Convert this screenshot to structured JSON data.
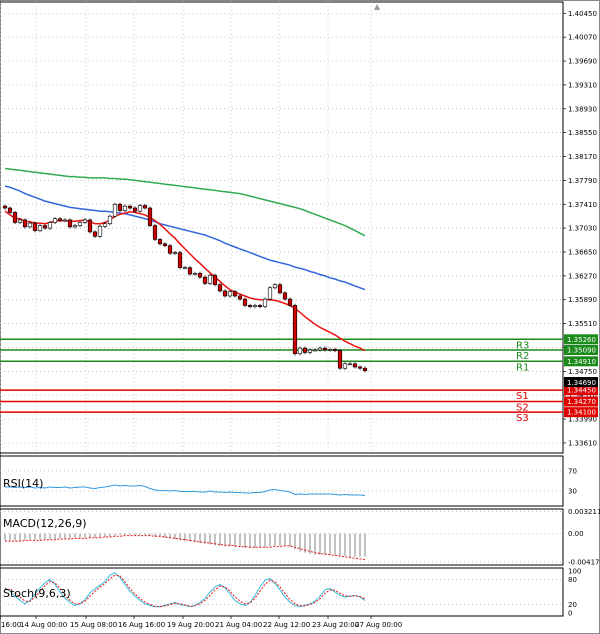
{
  "chart_data": [
    {
      "type": "candlestick",
      "panel": "price",
      "y_ticks": [
        "1.40450",
        "1.40070",
        "1.39690",
        "1.39310",
        "1.38930",
        "1.38550",
        "1.38170",
        "1.37790",
        "1.37410",
        "1.37030",
        "1.36650",
        "1.36270",
        "1.35890",
        "1.35510",
        "1.35130",
        "1.34750",
        "1.34370",
        "1.33990",
        "1.33610"
      ],
      "ylim": [
        1.3345,
        1.4063
      ],
      "current_price": "1.34690",
      "levels": [
        {
          "name": "R3",
          "value": 1.3526,
          "label": "1.35260",
          "color": "#1a8a1a"
        },
        {
          "name": "R2",
          "value": 1.3509,
          "label": "1.35090",
          "color": "#1a8a1a"
        },
        {
          "name": "R1",
          "value": 1.3491,
          "label": "1.34910",
          "color": "#1a8a1a"
        },
        {
          "name": "S1",
          "value": 1.3445,
          "label": "1.34450",
          "color": "#e00000"
        },
        {
          "name": "S2",
          "value": 1.3427,
          "label": "1.34270",
          "color": "#e00000"
        },
        {
          "name": "S3",
          "value": 1.341,
          "label": "1.34100",
          "color": "#e00000"
        }
      ],
      "close": [
        1.3735,
        1.3728,
        1.3712,
        1.3716,
        1.3705,
        1.3711,
        1.3699,
        1.3707,
        1.3703,
        1.3712,
        1.3718,
        1.3715,
        1.3716,
        1.3705,
        1.3707,
        1.3712,
        1.3716,
        1.3697,
        1.369,
        1.3706,
        1.371,
        1.3722,
        1.3741,
        1.3731,
        1.3738,
        1.3735,
        1.373,
        1.3739,
        1.3735,
        1.3707,
        1.3685,
        1.3678,
        1.3675,
        1.3663,
        1.3664,
        1.364,
        1.364,
        1.363,
        1.3631,
        1.3625,
        1.3615,
        1.3628,
        1.3613,
        1.3603,
        1.3595,
        1.3602,
        1.3595,
        1.359,
        1.358,
        1.3578,
        1.358,
        1.3578,
        1.359,
        1.3608,
        1.3613,
        1.36,
        1.359,
        1.358,
        1.3503,
        1.3512,
        1.3505,
        1.3509,
        1.3509,
        1.3512,
        1.3509,
        1.351,
        1.3508,
        1.348,
        1.3487,
        1.3487,
        1.3482,
        1.348,
        1.3476
      ],
      "ma_fast": [
        1.373,
        1.3724,
        1.3719,
        1.3718,
        1.3714,
        1.3713,
        1.3711,
        1.3711,
        1.371,
        1.3712,
        1.3714,
        1.3715,
        1.3715,
        1.3714,
        1.3714,
        1.3715,
        1.3716,
        1.3713,
        1.371,
        1.371,
        1.3712,
        1.3716,
        1.3722,
        1.3725,
        1.3727,
        1.3729,
        1.3728,
        1.3726,
        1.3724,
        1.372,
        1.3715,
        1.3709,
        1.3702,
        1.3694,
        1.3687,
        1.3678,
        1.367,
        1.3662,
        1.3654,
        1.3647,
        1.3639,
        1.3632,
        1.3625,
        1.3618,
        1.3611,
        1.3605,
        1.3601,
        1.3598,
        1.3595,
        1.3592,
        1.359,
        1.3589,
        1.3589,
        1.3589,
        1.3588,
        1.3586,
        1.3583,
        1.358,
        1.3575,
        1.3569,
        1.3562,
        1.3556,
        1.355,
        1.3545,
        1.3541,
        1.3537,
        1.3533,
        1.3528,
        1.3523,
        1.3519,
        1.3515,
        1.3512,
        1.3508
      ],
      "ma_mid": [
        1.377,
        1.3768,
        1.3765,
        1.3762,
        1.3758,
        1.3755,
        1.3752,
        1.3749,
        1.3746,
        1.3744,
        1.3742,
        1.374,
        1.3738,
        1.3736,
        1.3735,
        1.3734,
        1.3733,
        1.3732,
        1.3731,
        1.373,
        1.373,
        1.3729,
        1.3728,
        1.3727,
        1.3726,
        1.3724,
        1.3722,
        1.372,
        1.3718,
        1.3716,
        1.3713,
        1.371,
        1.3708,
        1.3706,
        1.3704,
        1.3702,
        1.37,
        1.3698,
        1.3696,
        1.3694,
        1.3692,
        1.3689,
        1.3686,
        1.3683,
        1.3679,
        1.3676,
        1.3673,
        1.367,
        1.3667,
        1.3664,
        1.3661,
        1.3658,
        1.3655,
        1.3652,
        1.365,
        1.3648,
        1.3646,
        1.3644,
        1.3641,
        1.3639,
        1.3637,
        1.3634,
        1.3632,
        1.3629,
        1.3627,
        1.3624,
        1.3622,
        1.3619,
        1.3617,
        1.3614,
        1.3611,
        1.3608,
        1.3605
      ],
      "ma_slow": [
        1.3798,
        1.3797,
        1.3796,
        1.3795,
        1.3794,
        1.3793,
        1.3792,
        1.3791,
        1.379,
        1.3789,
        1.3788,
        1.3787,
        1.3786,
        1.3785,
        1.3785,
        1.3784,
        1.3784,
        1.3783,
        1.3783,
        1.3783,
        1.3783,
        1.3782,
        1.3782,
        1.3781,
        1.3781,
        1.378,
        1.3779,
        1.3778,
        1.3777,
        1.3776,
        1.3775,
        1.3774,
        1.3773,
        1.3772,
        1.3771,
        1.377,
        1.3769,
        1.3768,
        1.3767,
        1.3766,
        1.3765,
        1.3764,
        1.3763,
        1.3762,
        1.3761,
        1.376,
        1.3759,
        1.3758,
        1.3756,
        1.3754,
        1.3752,
        1.375,
        1.3748,
        1.3746,
        1.3744,
        1.3742,
        1.374,
        1.3738,
        1.3736,
        1.3734,
        1.3731,
        1.3728,
        1.3725,
        1.3722,
        1.3719,
        1.3716,
        1.3713,
        1.371,
        1.3707,
        1.3703,
        1.3699,
        1.3695,
        1.3691
      ],
      "colors": {
        "up": "#ffffff",
        "down": "#cc0000",
        "wick": "#000000",
        "ma_fast": "#ee1111",
        "ma_mid": "#3366dd",
        "ma_slow": "#33aa55",
        "grid": "#b0b0b0"
      }
    },
    {
      "type": "line",
      "panel": "rsi",
      "label": "RSI(14)",
      "y_ticks": [
        "70",
        "30"
      ],
      "ylim": [
        0,
        100
      ],
      "values": [
        38,
        38,
        37,
        38,
        37,
        38,
        36,
        37,
        36,
        38,
        37,
        37,
        38,
        36,
        37,
        38,
        38,
        36,
        35,
        37,
        38,
        40,
        42,
        40,
        41,
        40,
        40,
        41,
        39,
        35,
        32,
        31,
        31,
        30,
        31,
        29,
        29,
        29,
        29,
        28,
        28,
        30,
        28,
        28,
        27,
        28,
        27,
        27,
        26,
        26,
        27,
        27,
        29,
        32,
        33,
        31,
        30,
        28,
        23,
        24,
        23,
        24,
        24,
        24,
        24,
        24,
        23,
        22,
        23,
        22,
        22,
        22,
        21
      ],
      "color": "#3399dd"
    },
    {
      "type": "histogram",
      "panel": "macd",
      "label": "MACD(12,26,9)",
      "y_ticks": [
        "0.003211",
        "0.00",
        "-0.004174"
      ],
      "ylim": [
        -0.0046,
        0.0036
      ],
      "histogram": [
        -0.001,
        -0.001,
        -0.001,
        -0.001,
        -0.0009,
        -0.0009,
        -0.0009,
        -0.0009,
        -0.0008,
        -0.0008,
        -0.0008,
        -0.0007,
        -0.0007,
        -0.0007,
        -0.0006,
        -0.0006,
        -0.0006,
        -0.0006,
        -0.0006,
        -0.0005,
        -0.0005,
        -0.0004,
        -0.0003,
        -0.0002,
        -0.0002,
        -0.0002,
        -0.0002,
        -0.0002,
        -0.0002,
        -0.0003,
        -0.0004,
        -0.0005,
        -0.0006,
        -0.0007,
        -0.0008,
        -0.001,
        -0.0011,
        -0.0012,
        -0.0013,
        -0.0014,
        -0.0015,
        -0.0016,
        -0.0017,
        -0.0018,
        -0.0019,
        -0.0019,
        -0.002,
        -0.002,
        -0.0021,
        -0.0021,
        -0.0021,
        -0.0021,
        -0.002,
        -0.0019,
        -0.0018,
        -0.0018,
        -0.0018,
        -0.0019,
        -0.0023,
        -0.0026,
        -0.0028,
        -0.003,
        -0.0031,
        -0.0031,
        -0.0031,
        -0.0031,
        -0.0031,
        -0.0032,
        -0.0033,
        -0.0034,
        -0.0034,
        -0.0034,
        -0.0034
      ],
      "signal": [
        -0.0011,
        -0.0011,
        -0.0011,
        -0.0011,
        -0.001,
        -0.001,
        -0.001,
        -0.001,
        -0.0009,
        -0.0009,
        -0.0009,
        -0.0008,
        -0.0008,
        -0.0008,
        -0.0007,
        -0.0007,
        -0.0007,
        -0.0006,
        -0.0006,
        -0.0006,
        -0.0005,
        -0.0005,
        -0.0004,
        -0.0004,
        -0.0003,
        -0.0003,
        -0.0003,
        -0.0003,
        -0.0003,
        -0.0003,
        -0.0004,
        -0.0004,
        -0.0005,
        -0.0006,
        -0.0007,
        -0.0008,
        -0.0009,
        -0.001,
        -0.0011,
        -0.0012,
        -0.0013,
        -0.0014,
        -0.0015,
        -0.0016,
        -0.0017,
        -0.0017,
        -0.0018,
        -0.0019,
        -0.0019,
        -0.002,
        -0.002,
        -0.002,
        -0.002,
        -0.002,
        -0.0019,
        -0.0019,
        -0.0018,
        -0.0018,
        -0.002,
        -0.0022,
        -0.0024,
        -0.0026,
        -0.0028,
        -0.0029,
        -0.003,
        -0.0031,
        -0.0032,
        -0.0033,
        -0.0034,
        -0.0035,
        -0.0036,
        -0.0037,
        -0.0038
      ],
      "colors": {
        "bar": "#666666",
        "signal": "#ee1111"
      }
    },
    {
      "type": "line",
      "panel": "stoch",
      "label": "Stoch(9,6,3)",
      "y_ticks": [
        "100",
        "80",
        "20",
        "0"
      ],
      "ylim": [
        0,
        100
      ],
      "k": [
        60,
        52,
        40,
        30,
        22,
        30,
        45,
        60,
        72,
        80,
        68,
        50,
        35,
        25,
        18,
        22,
        32,
        48,
        58,
        66,
        75,
        90,
        96,
        84,
        68,
        52,
        40,
        30,
        22,
        18,
        15,
        15,
        18,
        22,
        25,
        20,
        18,
        15,
        18,
        25,
        35,
        50,
        62,
        68,
        60,
        45,
        30,
        22,
        18,
        25,
        42,
        62,
        78,
        82,
        70,
        55,
        38,
        25,
        18,
        15,
        18,
        22,
        28,
        40,
        55,
        58,
        50,
        42,
        38,
        40,
        42,
        38,
        30
      ],
      "d": [
        58,
        55,
        48,
        38,
        28,
        28,
        38,
        52,
        65,
        75,
        72,
        58,
        42,
        30,
        22,
        22,
        28,
        40,
        52,
        62,
        70,
        82,
        90,
        88,
        74,
        58,
        45,
        35,
        26,
        20,
        16,
        15,
        17,
        20,
        23,
        22,
        19,
        16,
        17,
        22,
        30,
        42,
        55,
        64,
        62,
        52,
        38,
        28,
        22,
        24,
        35,
        52,
        68,
        78,
        74,
        62,
        46,
        32,
        22,
        17,
        17,
        20,
        25,
        34,
        47,
        55,
        54,
        47,
        41,
        40,
        41,
        39,
        34
      ],
      "colors": {
        "k": "#33bbdd",
        "d": "#ee1111"
      }
    }
  ],
  "x_labels": [
    "16:00",
    "14 Aug 00:00",
    "15 Aug 08:00",
    "16 Aug 16:00",
    "19 Aug 20:00",
    "21 Aug 04:00",
    "22 Aug 12:00",
    "23 Aug 20:00",
    "27 Aug 00:00"
  ]
}
